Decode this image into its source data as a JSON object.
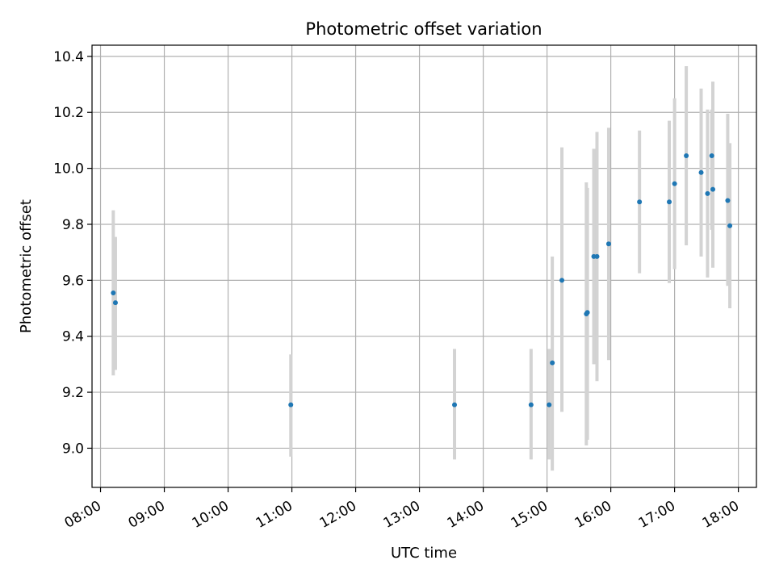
{
  "chart_data": {
    "type": "scatter",
    "title": "Photometric offset variation",
    "xlabel": "UTC time",
    "ylabel": "Photometric offset",
    "x_unit": "UTC time (HH:MM)",
    "xlim": [
      "07:52",
      "18:17"
    ],
    "ylim": [
      8.86,
      10.44
    ],
    "x_ticks": [
      "08:00",
      "09:00",
      "10:00",
      "11:00",
      "12:00",
      "13:00",
      "14:00",
      "15:00",
      "16:00",
      "17:00",
      "18:00"
    ],
    "y_ticks": [
      9.0,
      9.2,
      9.4,
      9.6,
      9.8,
      10.0,
      10.2,
      10.4
    ],
    "y_tick_labels": [
      "9.0",
      "9.2",
      "9.4",
      "9.6",
      "9.8",
      "10.0",
      "10.2",
      "10.4"
    ],
    "grid": true,
    "marker_color": "#1f77b4",
    "errorbar_color": "#d3d3d3",
    "points": [
      {
        "x": "08:12",
        "y": 9.555,
        "lo": 9.26,
        "hi": 9.85
      },
      {
        "x": "08:14",
        "y": 9.52,
        "lo": 9.28,
        "hi": 9.755
      },
      {
        "x": "10:59",
        "y": 9.155,
        "lo": 8.97,
        "hi": 9.335
      },
      {
        "x": "13:33",
        "y": 9.155,
        "lo": 8.96,
        "hi": 9.355
      },
      {
        "x": "14:45",
        "y": 9.155,
        "lo": 8.96,
        "hi": 9.355
      },
      {
        "x": "15:02",
        "y": 9.155,
        "lo": 8.96,
        "hi": 9.355
      },
      {
        "x": "15:05",
        "y": 9.305,
        "lo": 8.92,
        "hi": 9.685
      },
      {
        "x": "15:14",
        "y": 9.6,
        "lo": 9.13,
        "hi": 10.075
      },
      {
        "x": "15:37",
        "y": 9.48,
        "lo": 9.01,
        "hi": 9.95
      },
      {
        "x": "15:38",
        "y": 9.485,
        "lo": 9.03,
        "hi": 9.93
      },
      {
        "x": "15:44",
        "y": 9.685,
        "lo": 9.3,
        "hi": 10.07
      },
      {
        "x": "15:47",
        "y": 9.685,
        "lo": 9.24,
        "hi": 10.13
      },
      {
        "x": "15:58",
        "y": 9.73,
        "lo": 9.315,
        "hi": 10.145
      },
      {
        "x": "16:27",
        "y": 9.88,
        "lo": 9.625,
        "hi": 10.135
      },
      {
        "x": "16:55",
        "y": 9.88,
        "lo": 9.59,
        "hi": 10.17
      },
      {
        "x": "17:00",
        "y": 9.945,
        "lo": 9.64,
        "hi": 10.25
      },
      {
        "x": "17:11",
        "y": 10.045,
        "lo": 9.725,
        "hi": 10.365
      },
      {
        "x": "17:25",
        "y": 9.985,
        "lo": 9.685,
        "hi": 10.285
      },
      {
        "x": "17:31",
        "y": 9.91,
        "lo": 9.61,
        "hi": 10.21
      },
      {
        "x": "17:35",
        "y": 10.045,
        "lo": 9.78,
        "hi": 10.21
      },
      {
        "x": "17:36",
        "y": 9.925,
        "lo": 9.645,
        "hi": 10.31
      },
      {
        "x": "17:50",
        "y": 9.885,
        "lo": 9.58,
        "hi": 10.195
      },
      {
        "x": "17:52",
        "y": 9.795,
        "lo": 9.5,
        "hi": 10.09
      }
    ]
  }
}
